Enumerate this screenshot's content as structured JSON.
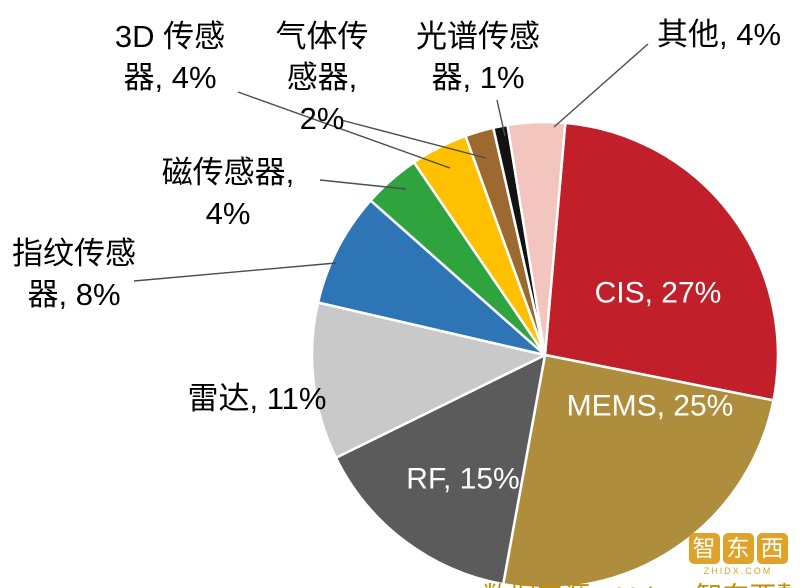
{
  "chart_data": {
    "type": "pie",
    "title": "",
    "unit": "%",
    "legend": "none",
    "start_angle_deg": 5,
    "total_labelled": 101,
    "slices": [
      {
        "id": "cis",
        "label": "CIS",
        "value": 27,
        "display": "CIS, 27%",
        "color": "#C1202A",
        "label_position": "inside",
        "label_lines": [
          "CIS, 27%"
        ]
      },
      {
        "id": "mems",
        "label": "MEMS",
        "value": 25,
        "display": "MEMS, 25%",
        "color": "#AE8D3C",
        "label_position": "inside",
        "label_lines": [
          "MEMS, 25%"
        ]
      },
      {
        "id": "rf",
        "label": "RF",
        "value": 15,
        "display": "RF, 15%",
        "color": "#5B5B5B",
        "label_position": "inside",
        "label_lines": [
          "RF, 15%"
        ]
      },
      {
        "id": "radar",
        "label": "雷达",
        "value": 11,
        "display": "雷达, 11%",
        "color": "#C9C9C9",
        "label_position": "outside",
        "label_lines": [
          "雷达, 11%"
        ]
      },
      {
        "id": "fingerprint",
        "label": "指纹传感器",
        "value": 8,
        "display": "指纹传感器, 8%",
        "color": "#2E75B6",
        "label_position": "outside",
        "label_lines": [
          "指纹传感",
          "器, 8%"
        ]
      },
      {
        "id": "magnetic",
        "label": "磁传感器",
        "value": 4,
        "display": "磁传感器, 4%",
        "color": "#2FA33E",
        "label_position": "outside",
        "label_lines": [
          "磁传感器,",
          "4%"
        ]
      },
      {
        "id": "sensor-3d",
        "label": "3D 传感器",
        "value": 4,
        "display": "3D 传感器, 4%",
        "color": "#FFC000",
        "label_position": "outside",
        "label_lines": [
          "3D 传感",
          "器, 4%"
        ]
      },
      {
        "id": "gas",
        "label": "气体传感器",
        "value": 2,
        "display": "气体传感器, 2%",
        "color": "#9C6A30",
        "label_position": "outside",
        "label_lines": [
          "气体传",
          "感器,",
          "2%"
        ]
      },
      {
        "id": "spectral",
        "label": "光谱传感器",
        "value": 1,
        "display": "光谱传感器, 1%",
        "color": "#121212",
        "label_position": "outside",
        "label_lines": [
          "光谱传感",
          "器, 1%"
        ]
      },
      {
        "id": "other",
        "label": "其他",
        "value": 4,
        "display": "其他, 4%",
        "color": "#F2C5BF",
        "label_position": "outside",
        "label_lines": [
          "其他, 4%"
        ]
      }
    ]
  },
  "watermark": {
    "logo_chars": [
      "智",
      "东",
      "西"
    ],
    "caption": "ZHIDX.COM",
    "color": "#DFA32B"
  },
  "footer": {
    "partial_text": "数据来源：Yole，智东西整理"
  }
}
